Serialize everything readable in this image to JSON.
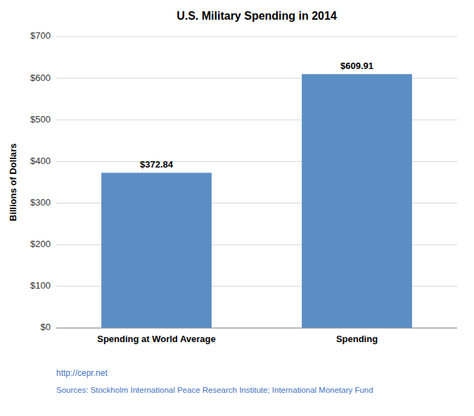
{
  "chart_data": {
    "type": "bar",
    "title": "U.S. Military Spending in 2014",
    "categories": [
      "Spending at World Average",
      "Spending"
    ],
    "values": [
      372.84,
      609.91
    ],
    "value_labels": [
      "$372.84",
      "$609.91"
    ],
    "data_labels": true,
    "color": "#5b8ec4",
    "ylabel": "Billions of Dollars",
    "ylim": [
      0,
      700
    ],
    "yticks": [
      {
        "value": 0,
        "label": "$0"
      },
      {
        "value": 100,
        "label": "$100"
      },
      {
        "value": 200,
        "label": "$200"
      },
      {
        "value": 300,
        "label": "$300"
      },
      {
        "value": 400,
        "label": "$400"
      },
      {
        "value": 500,
        "label": "$500"
      },
      {
        "value": 600,
        "label": "$600"
      },
      {
        "value": 700,
        "label": "$700"
      }
    ],
    "grid": true,
    "annotations": [
      {
        "text": "http://cepr.net",
        "color": "#4472c4"
      },
      {
        "text": "Sources: Stockholm International Peace Research Institute; International Monetary Fund",
        "color": "#4472c4"
      }
    ]
  }
}
